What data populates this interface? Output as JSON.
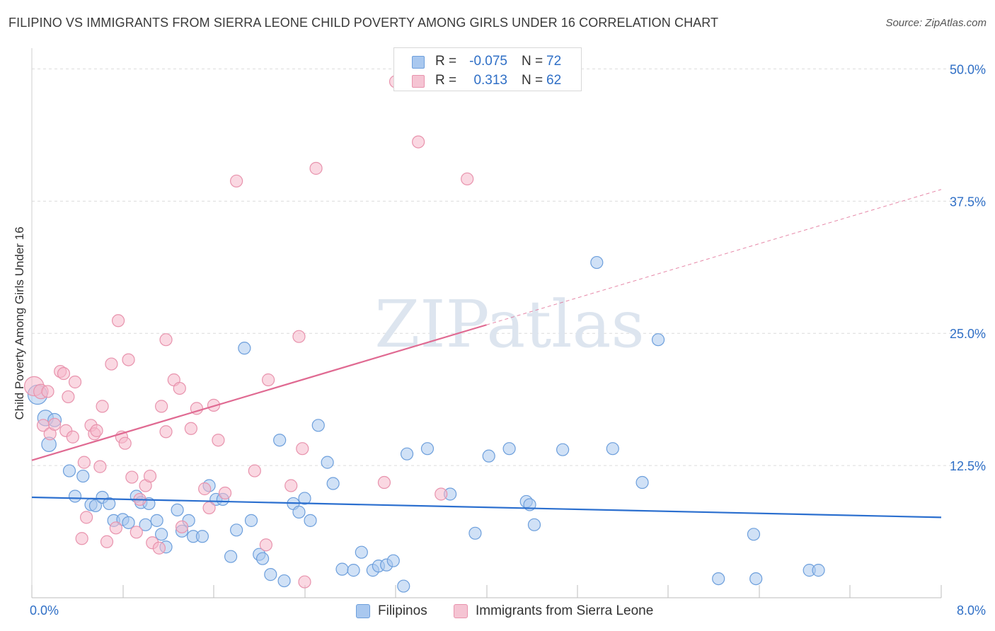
{
  "chart_data": {
    "type": "scatter",
    "title": "FILIPINO VS IMMIGRANTS FROM SIERRA LEONE CHILD POVERTY AMONG GIRLS UNDER 16 CORRELATION CHART",
    "source": "Source: ZipAtlas.com",
    "ylabel": "Child Poverty Among Girls Under 16",
    "xlabel": "",
    "xlim": [
      0,
      8
    ],
    "ylim": [
      0,
      50
    ],
    "x_tick_labels": [
      "0.0%",
      "8.0%"
    ],
    "y_ticks": [
      12.5,
      25,
      37.5,
      50
    ],
    "y_tick_labels": [
      "12.5%",
      "25.0%",
      "37.5%",
      "50.0%"
    ],
    "grid": true,
    "watermark": "ZIPatlas",
    "legend_position": "top-center",
    "colors": {
      "filipinos_fill": "#a9c8ef",
      "filipinos_stroke": "#6d9fdc",
      "filipinos_line": "#2b6fcf",
      "sierra_fill": "#f5b8cb",
      "sierra_stroke": "#e893ad",
      "sierra_line": "#e06a92",
      "tick_label": "#2f6fc6"
    },
    "stats": [
      {
        "r_label": "R =",
        "r_value": "-0.075",
        "n_label": "N =",
        "n_value": "72"
      },
      {
        "r_label": "R =",
        "r_value": "0.313",
        "n_label": "N =",
        "n_value": "62"
      }
    ],
    "series": [
      {
        "name": "Filipinos",
        "trend": {
          "x": [
            0,
            8
          ],
          "y": [
            9.5,
            7.6
          ]
        },
        "points": [
          [
            0.05,
            19.2,
            1.6
          ],
          [
            0.12,
            17.0,
            1.3
          ],
          [
            0.15,
            14.5,
            1.2
          ],
          [
            0.2,
            16.8,
            1.1
          ],
          [
            0.33,
            12.0,
            1
          ],
          [
            0.45,
            11.5,
            1
          ],
          [
            0.38,
            9.6,
            1
          ],
          [
            0.52,
            8.8,
            1
          ],
          [
            0.56,
            8.7,
            1
          ],
          [
            0.62,
            9.5,
            1
          ],
          [
            0.68,
            8.9,
            1
          ],
          [
            0.72,
            7.3,
            1
          ],
          [
            0.8,
            7.4,
            1
          ],
          [
            0.85,
            7.1,
            1
          ],
          [
            0.92,
            9.6,
            1
          ],
          [
            0.96,
            9.0,
            1
          ],
          [
            1.0,
            6.9,
            1
          ],
          [
            1.03,
            8.9,
            1
          ],
          [
            1.1,
            7.3,
            1
          ],
          [
            1.14,
            6.0,
            1
          ],
          [
            1.18,
            4.8,
            1
          ],
          [
            1.28,
            8.3,
            1
          ],
          [
            1.32,
            6.3,
            1
          ],
          [
            1.38,
            7.3,
            1
          ],
          [
            1.42,
            5.8,
            1
          ],
          [
            1.5,
            5.8,
            1
          ],
          [
            1.56,
            10.6,
            1
          ],
          [
            1.62,
            9.3,
            1
          ],
          [
            1.68,
            9.3,
            1
          ],
          [
            1.75,
            3.9,
            1
          ],
          [
            1.8,
            6.4,
            1
          ],
          [
            1.87,
            23.6,
            1
          ],
          [
            1.93,
            7.3,
            1
          ],
          [
            2.0,
            4.1,
            1
          ],
          [
            2.03,
            3.7,
            1
          ],
          [
            2.1,
            2.2,
            1
          ],
          [
            2.18,
            14.9,
            1
          ],
          [
            2.22,
            1.6,
            1
          ],
          [
            2.3,
            8.9,
            1
          ],
          [
            2.35,
            8.1,
            1
          ],
          [
            2.4,
            9.4,
            1
          ],
          [
            2.45,
            7.3,
            1
          ],
          [
            2.52,
            16.3,
            1
          ],
          [
            2.6,
            12.8,
            1
          ],
          [
            2.65,
            10.8,
            1
          ],
          [
            2.73,
            2.7,
            1
          ],
          [
            2.83,
            2.6,
            1
          ],
          [
            2.9,
            4.3,
            1
          ],
          [
            3.0,
            2.6,
            1
          ],
          [
            3.05,
            3.0,
            1
          ],
          [
            3.12,
            3.1,
            1
          ],
          [
            3.18,
            3.5,
            1
          ],
          [
            3.27,
            1.1,
            1
          ],
          [
            3.3,
            13.6,
            1
          ],
          [
            3.48,
            14.1,
            1
          ],
          [
            3.68,
            9.8,
            1
          ],
          [
            3.9,
            6.1,
            1
          ],
          [
            4.02,
            13.4,
            1
          ],
          [
            4.2,
            14.1,
            1
          ],
          [
            4.35,
            9.1,
            1
          ],
          [
            4.38,
            8.8,
            1
          ],
          [
            4.42,
            6.9,
            1
          ],
          [
            4.67,
            14.0,
            1
          ],
          [
            4.97,
            31.7,
            1
          ],
          [
            5.11,
            14.1,
            1
          ],
          [
            5.37,
            10.9,
            1
          ],
          [
            5.51,
            24.4,
            1
          ],
          [
            6.04,
            1.8,
            1
          ],
          [
            6.35,
            6.0,
            1
          ],
          [
            6.37,
            1.8,
            1
          ],
          [
            6.84,
            2.6,
            1
          ],
          [
            6.92,
            2.6,
            1
          ]
        ]
      },
      {
        "name": "Immigrants from Sierra Leone",
        "trend": {
          "x": [
            0,
            4.0
          ],
          "y": [
            13.0,
            25.8
          ]
        },
        "trend_extension": {
          "x": [
            4.0,
            8.0
          ],
          "y": [
            25.8,
            38.6
          ]
        },
        "points": [
          [
            0.02,
            20.0,
            1.6
          ],
          [
            0.08,
            19.5,
            1.2
          ],
          [
            0.1,
            16.3,
            1
          ],
          [
            0.14,
            19.5,
            1
          ],
          [
            0.16,
            15.5,
            1
          ],
          [
            0.2,
            16.4,
            1
          ],
          [
            0.25,
            21.4,
            1
          ],
          [
            0.28,
            21.2,
            1
          ],
          [
            0.3,
            15.8,
            1
          ],
          [
            0.32,
            19.0,
            1
          ],
          [
            0.36,
            15.2,
            1
          ],
          [
            0.38,
            20.4,
            1
          ],
          [
            0.44,
            5.6,
            1
          ],
          [
            0.46,
            12.8,
            1
          ],
          [
            0.48,
            7.6,
            1
          ],
          [
            0.52,
            16.3,
            1
          ],
          [
            0.55,
            15.5,
            1
          ],
          [
            0.57,
            15.8,
            1
          ],
          [
            0.6,
            12.4,
            1
          ],
          [
            0.62,
            18.1,
            1
          ],
          [
            0.66,
            5.3,
            1
          ],
          [
            0.7,
            22.1,
            1
          ],
          [
            0.74,
            6.6,
            1
          ],
          [
            0.76,
            26.2,
            1
          ],
          [
            0.79,
            15.2,
            1
          ],
          [
            0.82,
            14.6,
            1
          ],
          [
            0.85,
            22.5,
            1
          ],
          [
            0.88,
            11.4,
            1
          ],
          [
            0.92,
            6.2,
            1
          ],
          [
            0.95,
            9.3,
            1
          ],
          [
            1.0,
            10.6,
            1
          ],
          [
            1.04,
            11.5,
            1
          ],
          [
            1.06,
            5.2,
            1
          ],
          [
            1.12,
            4.7,
            1
          ],
          [
            1.14,
            18.1,
            1
          ],
          [
            1.18,
            24.4,
            1
          ],
          [
            1.18,
            15.7,
            1
          ],
          [
            1.25,
            20.6,
            1
          ],
          [
            1.3,
            19.8,
            1
          ],
          [
            1.32,
            6.7,
            1
          ],
          [
            1.4,
            16.0,
            1
          ],
          [
            1.45,
            17.9,
            1
          ],
          [
            1.52,
            10.3,
            1
          ],
          [
            1.56,
            8.5,
            1
          ],
          [
            1.6,
            18.2,
            1
          ],
          [
            1.64,
            14.9,
            1
          ],
          [
            1.7,
            9.9,
            1
          ],
          [
            1.8,
            39.4,
            1
          ],
          [
            1.96,
            12.0,
            1
          ],
          [
            2.06,
            5.0,
            1
          ],
          [
            2.08,
            20.6,
            1
          ],
          [
            2.28,
            10.6,
            1
          ],
          [
            2.35,
            24.7,
            1
          ],
          [
            2.38,
            14.1,
            1
          ],
          [
            2.4,
            1.5,
            1
          ],
          [
            2.5,
            40.6,
            1
          ],
          [
            3.1,
            10.9,
            1
          ],
          [
            3.2,
            48.8,
            1
          ],
          [
            3.4,
            43.1,
            1
          ],
          [
            3.6,
            9.8,
            1
          ],
          [
            3.83,
            39.6,
            1
          ],
          [
            3.95,
            48.9,
            1
          ]
        ]
      }
    ]
  }
}
